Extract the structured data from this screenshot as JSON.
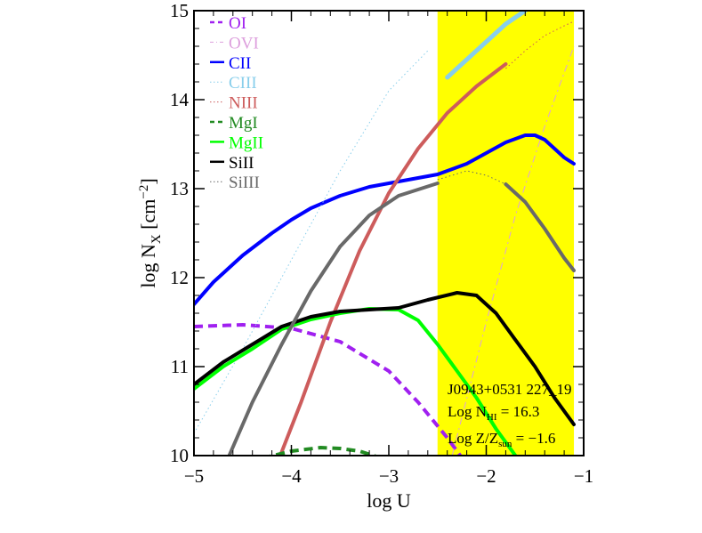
{
  "chart_data": {
    "type": "line",
    "title": "",
    "xlabel": "log U",
    "ylabel_parts": {
      "base": "log N",
      "sub": "X",
      "unit_open": " [cm",
      "sup": "−2",
      "unit_close": "]"
    },
    "xlim": [
      -5,
      -1
    ],
    "ylim": [
      10,
      15
    ],
    "xticks": [
      -5,
      -4,
      -3,
      -2,
      -1
    ],
    "xtick_labels": [
      "−5",
      "−4",
      "−3",
      "−2",
      "−1"
    ],
    "yticks": [
      10,
      11,
      12,
      13,
      14,
      15
    ],
    "ytick_labels": [
      "10",
      "11",
      "12",
      "13",
      "14",
      "15"
    ],
    "grid": false,
    "legend_position": "top-left",
    "highlight_region": {
      "x": [
        -2.5,
        -1.1
      ],
      "color": "#ffff00"
    },
    "annotation": {
      "line1": "J0943+0531 227_19",
      "line2_base": "Log N",
      "line2_sub": "HI",
      "line2_rest": " = 16.3",
      "line3_base": "Log Z/Z",
      "line3_sub": "sun",
      "line3_rest": " = −1.6"
    },
    "series": [
      {
        "name": "OI",
        "color": "#a020f0",
        "dash": "dash",
        "width": 4,
        "x": [
          -5.0,
          -4.5,
          -4.0,
          -3.5,
          -3.0,
          -2.7,
          -2.4,
          -2.2
        ],
        "y": [
          11.45,
          11.47,
          11.43,
          11.28,
          10.95,
          10.6,
          10.2,
          9.9
        ]
      },
      {
        "name": "OVI",
        "color": "#dda0dd",
        "dash": "dashdot",
        "width": 1,
        "x": [
          -2.35,
          -2.0,
          -1.7,
          -1.4,
          -1.1
        ],
        "y": [
          10.0,
          11.5,
          12.7,
          13.7,
          14.6
        ]
      },
      {
        "name": "CII",
        "color": "#0000ff",
        "dash": "solid",
        "width": 4,
        "x": [
          -5.0,
          -4.8,
          -4.5,
          -4.2,
          -4.0,
          -3.8,
          -3.5,
          -3.2,
          -3.0,
          -2.8,
          -2.5,
          -2.2,
          -2.0,
          -1.8,
          -1.6,
          -1.5,
          -1.4,
          -1.3,
          -1.2,
          -1.1
        ],
        "y": [
          11.7,
          11.95,
          12.25,
          12.5,
          12.65,
          12.78,
          12.92,
          13.02,
          13.06,
          13.1,
          13.16,
          13.28,
          13.4,
          13.52,
          13.6,
          13.6,
          13.55,
          13.45,
          13.35,
          13.28
        ]
      },
      {
        "name": "CIII",
        "color": "#87ceeb",
        "dash": "dot",
        "width": 1,
        "x": [
          -5.0,
          -4.5,
          -4.0,
          -3.5,
          -3.0,
          -2.6
        ],
        "y": [
          10.25,
          11.2,
          12.2,
          13.2,
          14.1,
          14.55
        ]
      },
      {
        "name": "CIII_bold",
        "color": "#87ceeb",
        "dash": "solid",
        "width": 5,
        "hidden_legend": true,
        "x": [
          -2.4,
          -2.1,
          -1.8,
          -1.6
        ],
        "y": [
          14.25,
          14.55,
          14.85,
          15.0
        ]
      },
      {
        "name": "NIII",
        "color": "#cd5c5c",
        "dash": "dot",
        "width": 1,
        "x": [
          -1.8,
          -1.6,
          -1.4,
          -1.2,
          -1.1
        ],
        "y": [
          14.35,
          14.55,
          14.72,
          14.83,
          14.88
        ]
      },
      {
        "name": "NIII_bold",
        "color": "#cd5c5c",
        "dash": "solid",
        "width": 4,
        "hidden_legend": true,
        "x": [
          -4.15,
          -3.9,
          -3.6,
          -3.3,
          -3.0,
          -2.7,
          -2.4,
          -2.1,
          -1.8
        ],
        "y": [
          9.9,
          10.6,
          11.5,
          12.3,
          12.95,
          13.45,
          13.85,
          14.15,
          14.4
        ]
      },
      {
        "name": "MgI",
        "color": "#228b22",
        "dash": "dash",
        "width": 4,
        "x": [
          -4.3,
          -4.0,
          -3.7,
          -3.5,
          -3.3,
          -3.1
        ],
        "y": [
          9.97,
          10.05,
          10.09,
          10.08,
          10.05,
          9.98
        ]
      },
      {
        "name": "MgII",
        "color": "#00ff00",
        "dash": "solid",
        "width": 4,
        "x": [
          -5.0,
          -4.7,
          -4.4,
          -4.1,
          -3.8,
          -3.5,
          -3.2,
          -2.9,
          -2.7,
          -2.5,
          -2.3,
          -2.1,
          -1.9,
          -1.7,
          -1.5
        ],
        "y": [
          10.75,
          11.0,
          11.2,
          11.42,
          11.53,
          11.6,
          11.65,
          11.64,
          11.52,
          11.25,
          10.95,
          10.65,
          10.3,
          10.0,
          9.7
        ]
      },
      {
        "name": "SiII",
        "color": "#000000",
        "dash": "solid",
        "width": 4,
        "x": [
          -5.0,
          -4.7,
          -4.4,
          -4.1,
          -3.8,
          -3.5,
          -3.2,
          -2.9,
          -2.6,
          -2.3,
          -2.1,
          -1.9,
          -1.7,
          -1.5,
          -1.3,
          -1.1
        ],
        "y": [
          10.8,
          11.05,
          11.25,
          11.45,
          11.56,
          11.62,
          11.64,
          11.66,
          11.75,
          11.83,
          11.8,
          11.6,
          11.3,
          11.0,
          10.65,
          10.35
        ]
      },
      {
        "name": "SiIII",
        "color": "#696969",
        "dash": "dot",
        "width": 1,
        "x": [
          -2.5,
          -2.2,
          -2.0,
          -1.8
        ],
        "y": [
          13.1,
          13.2,
          13.15,
          13.05
        ]
      },
      {
        "name": "SiIII_bold",
        "color": "#696969",
        "dash": "solid",
        "width": 4,
        "hidden_legend": true,
        "x": [
          -4.65,
          -4.4,
          -4.1,
          -3.8,
          -3.5,
          -3.2,
          -2.9,
          -2.5
        ],
        "y": [
          9.97,
          10.6,
          11.25,
          11.85,
          12.35,
          12.7,
          12.92,
          13.06
        ]
      },
      {
        "name": "SiIII_bold2",
        "color": "#696969",
        "dash": "solid",
        "width": 4,
        "hidden_legend": true,
        "x": [
          -1.8,
          -1.6,
          -1.4,
          -1.2,
          -1.1
        ],
        "y": [
          13.05,
          12.85,
          12.55,
          12.22,
          12.08
        ]
      }
    ]
  }
}
